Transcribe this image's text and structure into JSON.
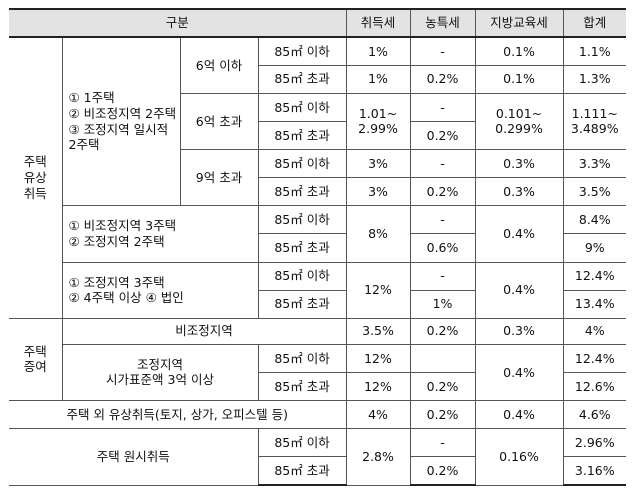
{
  "header": {
    "category": "구분",
    "acquisition": "취득세",
    "rural": "농특세",
    "education": "지방교육세",
    "total": "합계"
  },
  "labels": {
    "le85": "85㎡ 이하",
    "gt85": "85㎡ 초과",
    "dash": "-"
  },
  "paid": {
    "group": "주택 유상 취득",
    "group_lines": [
      "주택",
      "유상",
      "취득"
    ],
    "cond_a": [
      "① 1주택",
      "② 비조정지역 2주택",
      "③ 조정지역 일시적 2주택"
    ],
    "price_6_below": "6억 이하",
    "price_6_above": "6억 초과",
    "price_9_above": "9억 초과",
    "r6below": {
      "le": {
        "acq": "1%",
        "rural": "-",
        "edu": "0.1%",
        "total": "1.1%"
      },
      "gt": {
        "acq": "1%",
        "rural": "0.2%",
        "edu": "0.1%",
        "total": "1.3%"
      }
    },
    "r6above": {
      "acq": "1.01~ 2.99%",
      "acq_lines": [
        "1.01~",
        "2.99%"
      ],
      "rural_le": "-",
      "rural_gt": "0.2%",
      "edu": "0.101~ 0.299%",
      "edu_lines": [
        "0.101~",
        "0.299%"
      ],
      "total": "1.111~ 3.489%",
      "total_lines": [
        "1.111~",
        "3.489%"
      ]
    },
    "r9above": {
      "le": {
        "acq": "3%",
        "rural": "-",
        "edu": "0.3%",
        "total": "3.3%"
      },
      "gt": {
        "acq": "3%",
        "rural": "0.2%",
        "edu": "0.3%",
        "total": "3.5%"
      }
    },
    "cond_b": [
      "① 비조정지역 3주택",
      "② 조정지역 2주택"
    ],
    "rb": {
      "acq": "8%",
      "rural_le": "-",
      "rural_gt": "0.6%",
      "edu": "0.4%",
      "total_le": "8.4%",
      "total_gt": "9%"
    },
    "cond_c": [
      "① 조정지역 3주택",
      "② 4주택 이상 ④ 법인"
    ],
    "rc": {
      "acq": "12%",
      "rural_le": "-",
      "rural_gt": "1%",
      "edu": "0.4%",
      "total_le": "12.4%",
      "total_gt": "13.4%"
    }
  },
  "gift": {
    "group": "주택 증여",
    "group_lines": [
      "주택",
      "증여"
    ],
    "nonadjusted": "비조정지역",
    "rn": {
      "acq": "3.5%",
      "rural": "0.2%",
      "edu": "0.3%",
      "total": "4%"
    },
    "adjusted": [
      "조정지역",
      "시가표준액 3억 이상"
    ],
    "ra": {
      "acq_le": "12%",
      "acq_gt": "12%",
      "rural_le": "",
      "rural_gt": "0.2%",
      "edu": "0.4%",
      "total_le": "12.4%",
      "total_gt": "12.6%"
    }
  },
  "other": {
    "label": "주택 외 유상취득(토지, 상가, 오피스텔 등)",
    "acq": "4%",
    "rural": "0.2%",
    "edu": "0.4%",
    "total": "4.6%"
  },
  "original": {
    "label": "주택 원시취득",
    "acq": "2.8%",
    "rural_le": "-",
    "rural_gt": "0.2%",
    "edu": "0.16%",
    "total_le": "2.96%",
    "total_gt": "3.16%"
  }
}
